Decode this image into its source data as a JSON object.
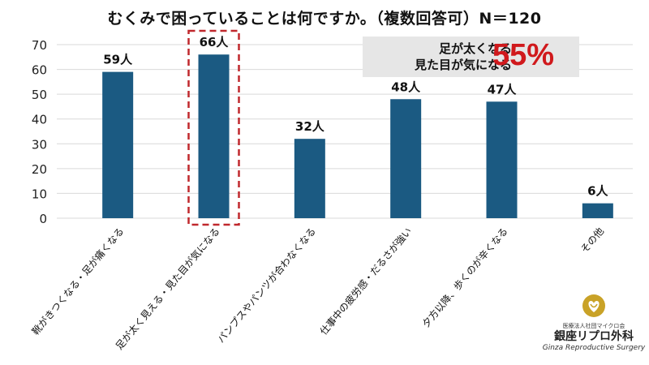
{
  "chart_data": {
    "type": "bar",
    "title": "むくみで困っていることは何ですか。（複数回答可）N＝120",
    "categories": [
      "靴がきつくなる・足が痛くなる",
      "足が太く見える・見た目が気になる",
      "パンプスやパンツが合わなくなる",
      "仕事中の疲労感・だるさが強い",
      "夕方以降、歩くのが辛くなる",
      "その他"
    ],
    "values": [
      59,
      66,
      32,
      48,
      47,
      6
    ],
    "value_labels": [
      "59人",
      "66人",
      "32人",
      "48人",
      "47人",
      "6人"
    ],
    "y_ticks": [
      0,
      10,
      20,
      30,
      40,
      50,
      60,
      70
    ],
    "ylim": [
      0,
      70
    ],
    "grid": true,
    "bar_color": "#1b5a82",
    "highlight_index": 1,
    "highlight_color": "#c0282d"
  },
  "callout": {
    "line1": "足が太くなる",
    "line2": "見た目が気になる",
    "percent": "55%",
    "percent_color": "#d0191c"
  },
  "logo": {
    "org": "医療法人社団マイクロ会",
    "name": "銀座リプロ外科",
    "name_en": "Ginza Reproductive Surgery",
    "icon": "heart-ribbon-icon"
  }
}
